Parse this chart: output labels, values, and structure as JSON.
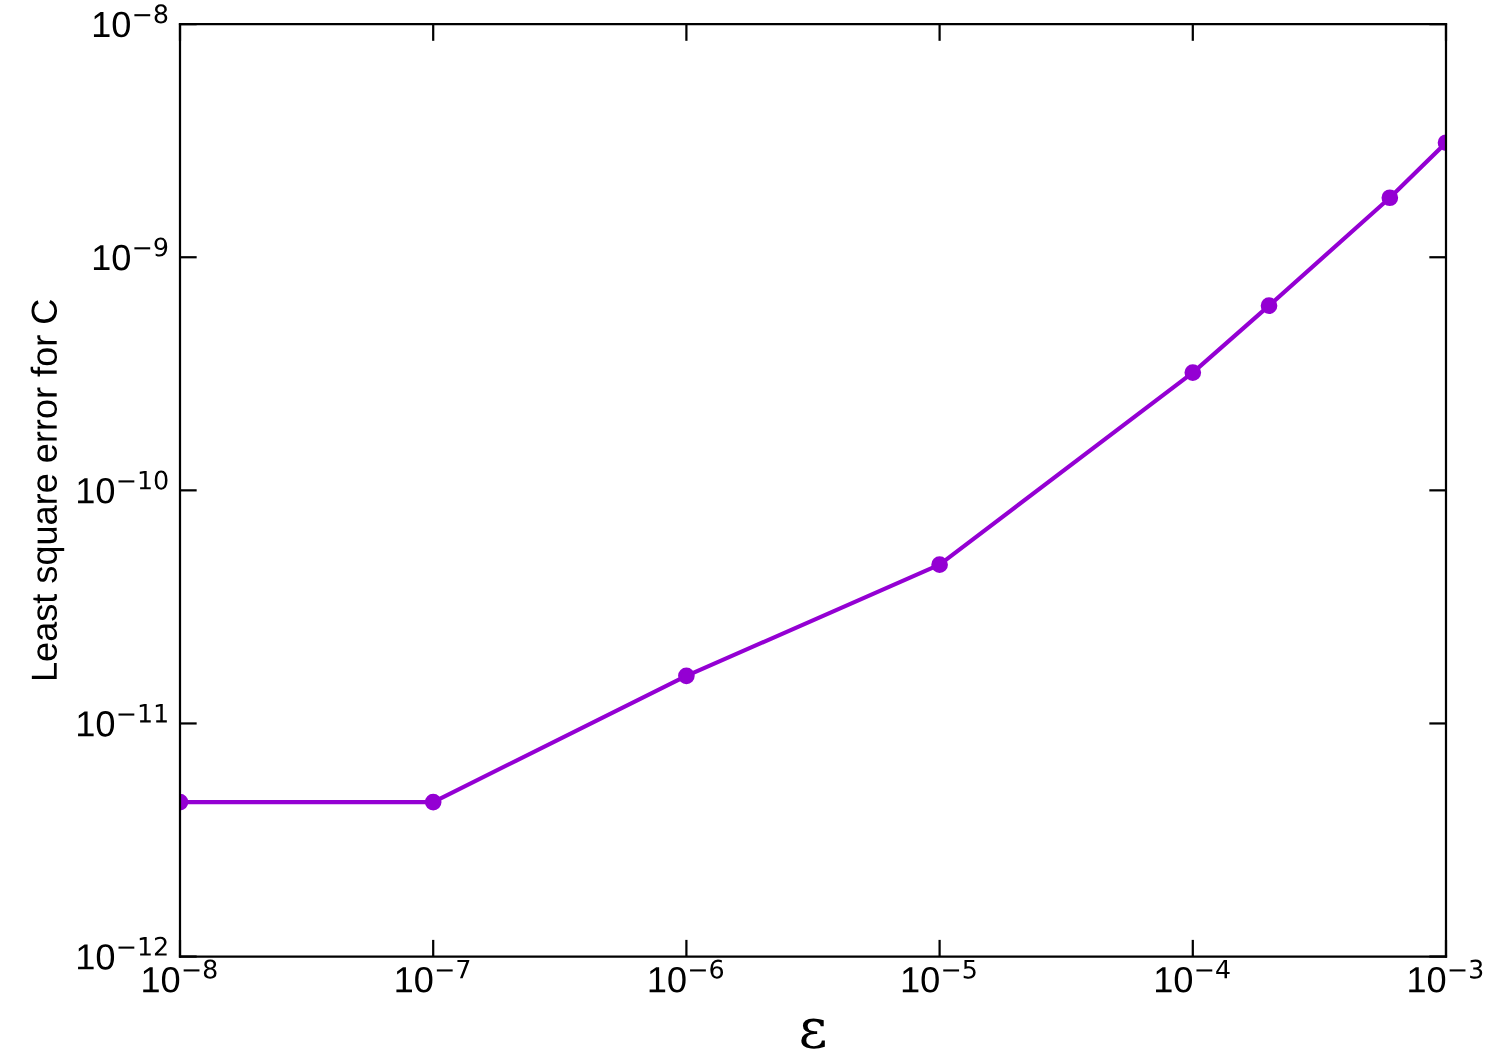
{
  "chart_data": {
    "type": "line",
    "xlabel": "ε",
    "ylabel": "Least square error for C",
    "x": [
      1e-08,
      1e-07,
      1e-06,
      1e-05,
      0.0001,
      0.0002,
      0.0006,
      0.001
    ],
    "series": [
      {
        "color": "#9400d3",
        "values": [
          4.6e-12,
          4.6e-12,
          1.6e-11,
          4.8e-11,
          3.2e-10,
          6.2e-10,
          1.8e-09,
          3.1e-09
        ]
      }
    ],
    "log": "xy",
    "marker": "circle",
    "line_style": "solid",
    "grid": false,
    "xlim": [
      1e-08,
      0.001
    ],
    "ylim": [
      1e-12,
      1e-08
    ],
    "xticks": [
      {
        "value": 1e-08,
        "label": "10$^{−8}$"
      },
      {
        "value": 1e-07,
        "label": "10$^{−7}$"
      },
      {
        "value": 1e-06,
        "label": "10$^{−6}$"
      },
      {
        "value": 1e-05,
        "label": "10$^{−5}$"
      },
      {
        "value": 0.0001,
        "label": "10$^{−4}$"
      },
      {
        "value": 0.001,
        "label": "10$^{−3}$"
      }
    ],
    "yticks": [
      {
        "value": 1e-12,
        "label": "10$^{−12}$"
      },
      {
        "value": 1e-11,
        "label": "10$^{−11}$"
      },
      {
        "value": 1e-10,
        "label": "10$^{−10}$"
      },
      {
        "value": 1e-09,
        "label": "10$^{−9}$"
      },
      {
        "value": 1e-08,
        "label": "10$^{−8}$"
      }
    ]
  }
}
